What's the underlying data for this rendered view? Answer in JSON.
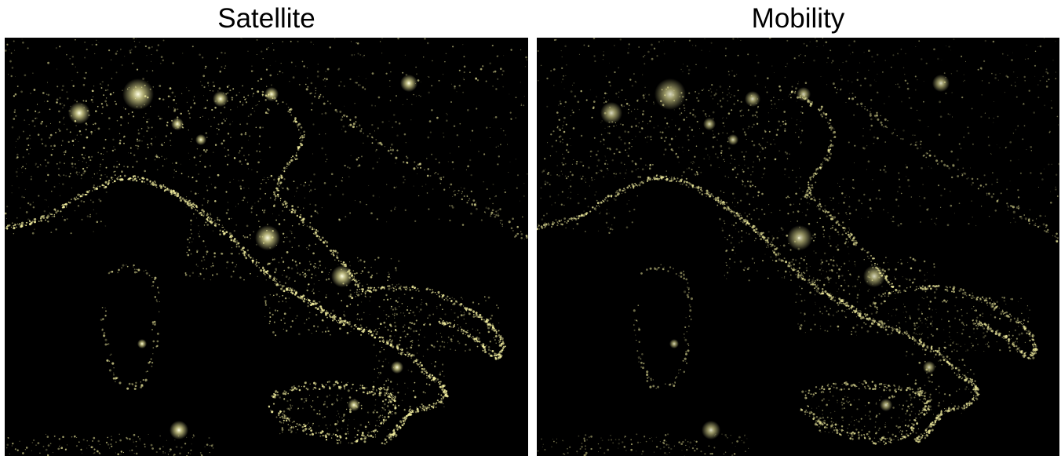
{
  "panels": [
    {
      "id": "satellite",
      "title": "Satellite"
    },
    {
      "id": "mobility",
      "title": "Mobility"
    }
  ],
  "colors": {
    "background": "#000000",
    "light": "#f4f0a0",
    "light_core": "#ffffe6"
  }
}
